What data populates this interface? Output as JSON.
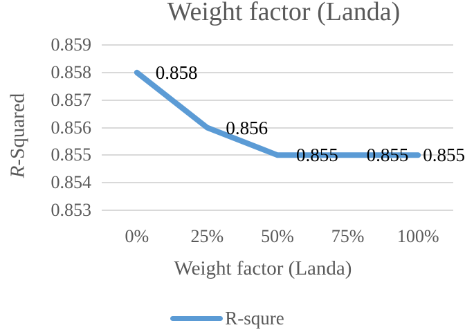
{
  "chart_data": {
    "type": "line",
    "title": "Weight factor (Landa)",
    "categories": [
      "0%",
      "25%",
      "50%",
      "75%",
      "100%"
    ],
    "series": [
      {
        "name": "R-squre",
        "values": [
          0.858,
          0.856,
          0.855,
          0.855,
          0.855
        ],
        "color": "#5B9BD5"
      }
    ],
    "data_labels": [
      "0.858",
      "0.856",
      "0.855",
      "0.855",
      "0.855"
    ],
    "xlabel": "Weight factor (Landa)",
    "ylabel": "R-Squared",
    "ytick_labels": [
      "0.859",
      "0.858",
      "0.857",
      "0.856",
      "0.855",
      "0.854",
      "0.853"
    ],
    "yticks": [
      0.859,
      0.858,
      0.857,
      0.856,
      0.855,
      0.854,
      0.853
    ],
    "ylim": [
      0.853,
      0.859
    ],
    "grid": true,
    "legend": {
      "label": "R-squre",
      "position": "bottom"
    },
    "colors": {
      "line": "#5B9BD5",
      "gridline": "#D9D9D9",
      "axis_text": "#595959",
      "data_label": "#000000",
      "background": "#FFFFFF"
    }
  }
}
